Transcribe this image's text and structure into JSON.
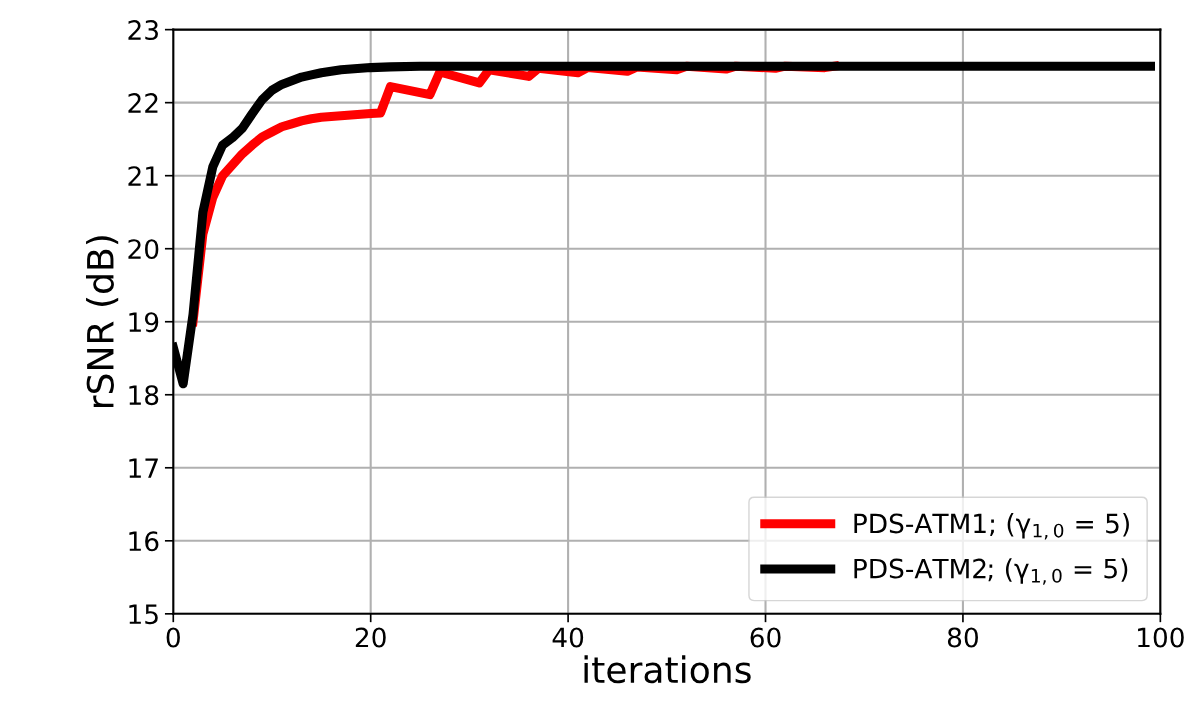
{
  "chart_data": {
    "type": "line",
    "xlabel": "iterations",
    "ylabel": "rSNR (dB)",
    "xlim": [
      0,
      100
    ],
    "xticks": [
      0,
      20,
      40,
      60,
      80,
      100
    ],
    "ylim": [
      15,
      23
    ],
    "yticks": [
      15,
      16,
      17,
      18,
      19,
      20,
      21,
      22,
      23
    ],
    "grid": true,
    "legend": "bottom right",
    "marker": "none",
    "line_style": "solid",
    "series": [
      {
        "name": "PDS-ATM1; (γ$_{1,0}$ = 5)",
        "color": "#ff0000",
        "x": [
          2,
          3,
          4,
          5,
          6,
          7,
          8,
          9,
          10,
          11,
          12,
          13,
          14,
          15,
          16,
          17,
          18,
          19,
          20,
          21,
          22,
          26,
          27,
          31,
          32,
          36,
          37,
          41,
          42,
          46,
          47,
          51,
          52,
          56,
          57,
          61,
          62,
          66,
          67
        ],
        "values": [
          19.0,
          20.2,
          20.7,
          21.0,
          21.15,
          21.3,
          21.42,
          21.53,
          21.6,
          21.67,
          21.71,
          21.75,
          21.78,
          21.8,
          21.81,
          21.82,
          21.83,
          21.84,
          21.85,
          21.86,
          22.22,
          22.11,
          22.42,
          22.27,
          22.45,
          22.36,
          22.47,
          22.41,
          22.48,
          22.43,
          22.49,
          22.45,
          22.5,
          22.46,
          22.5,
          22.47,
          22.5,
          22.48,
          22.5
        ]
      },
      {
        "name": "PDS-ATM2; (γ$_{1,0}$ = 5)",
        "color": "#000000",
        "x": [
          0,
          1,
          2,
          3,
          4,
          5,
          6,
          7,
          8,
          9,
          10,
          11,
          12,
          13,
          14,
          15,
          16,
          17,
          18,
          19,
          20,
          22,
          25,
          99
        ],
        "values": [
          18.65,
          18.15,
          19.1,
          20.5,
          21.12,
          21.42,
          21.52,
          21.65,
          21.85,
          22.04,
          22.17,
          22.25,
          22.3,
          22.35,
          22.38,
          22.41,
          22.43,
          22.45,
          22.46,
          22.47,
          22.48,
          22.49,
          22.5,
          22.5
        ]
      }
    ]
  }
}
